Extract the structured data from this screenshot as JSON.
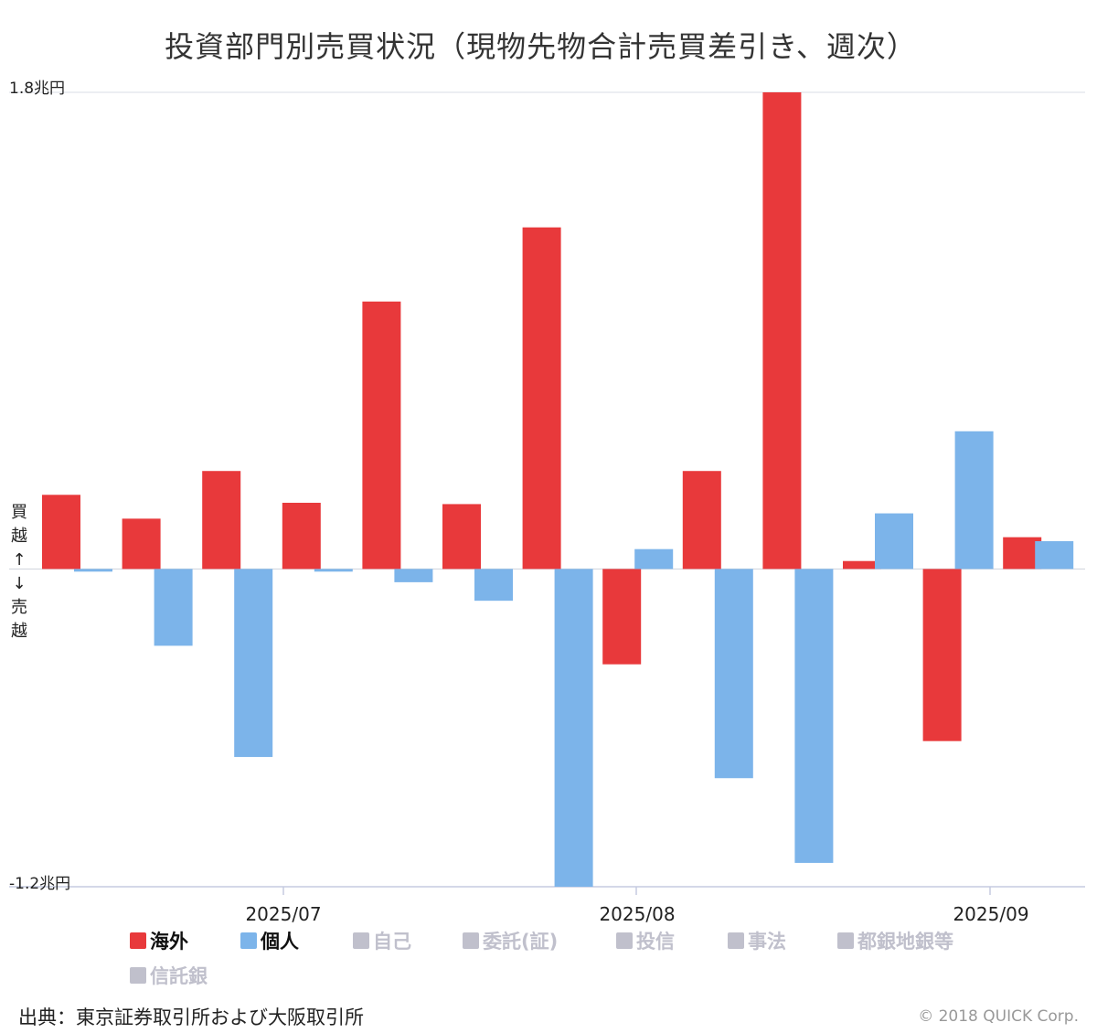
{
  "chart_data": {
    "type": "bar",
    "title": "投資部門別売買状況（現物先物合計売買差引き、週次）",
    "y_top_label": "1.8兆円",
    "y_bottom_label": "-1.2兆円",
    "side_label": [
      "買",
      "越",
      "↑",
      "↓",
      "売",
      "越"
    ],
    "ylim": [
      -1.2,
      1.8
    ],
    "x_tick_labels": [
      "2025/07",
      "2025/08",
      "2025/09"
    ],
    "series": [
      {
        "name": "海外",
        "color": "#e8393b",
        "values": [
          0.28,
          0.19,
          0.37,
          0.25,
          1.01,
          0.245,
          1.29,
          -0.36,
          0.37,
          1.8,
          0.03,
          -0.65,
          0.12
        ]
      },
      {
        "name": "個人",
        "color": "#7cb4ea",
        "values": [
          -0.01,
          -0.29,
          -0.71,
          -0.01,
          -0.05,
          -0.12,
          -1.2,
          0.075,
          -0.79,
          -1.11,
          0.21,
          0.52,
          0.105
        ]
      }
    ],
    "legend": [
      {
        "label": "海外",
        "color": "#e8393b",
        "active": true
      },
      {
        "label": "個人",
        "color": "#7cb4ea",
        "active": true
      },
      {
        "label": "自己",
        "color": "#c0c0cc",
        "active": false
      },
      {
        "label": "委託(証)",
        "color": "#c0c0cc",
        "active": false
      },
      {
        "label": "投信",
        "color": "#c0c0cc",
        "active": false
      },
      {
        "label": "事法",
        "color": "#c0c0cc",
        "active": false
      },
      {
        "label": "都銀地銀等",
        "color": "#c0c0cc",
        "active": false
      },
      {
        "label": "信託銀",
        "color": "#c0c0cc",
        "active": false
      }
    ]
  },
  "footer": {
    "source": "出典：東京証券取引所および大阪取引所",
    "copyright": "© 2018 QUICK Corp."
  }
}
